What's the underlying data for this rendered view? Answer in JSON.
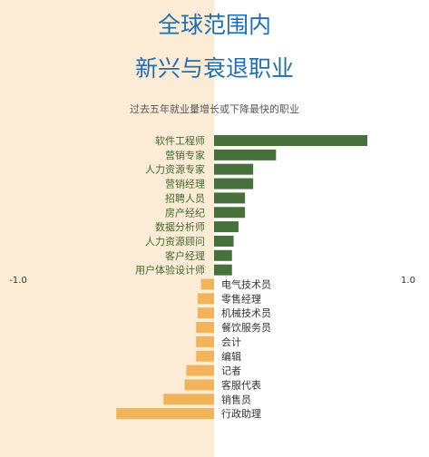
{
  "header": {
    "title_line1": "全球范围内",
    "title_line2": "新兴与衰退职业",
    "subtitle": "过去五年就业量增长或下降最快的职业"
  },
  "colors": {
    "positive": "#46713a",
    "negative": "#f2b45a",
    "left_background": "#fdecd5",
    "title": "#1f6fb0",
    "positive_label": "#3f6a33",
    "negative_label": "#333333"
  },
  "chart_data": {
    "type": "bar",
    "orientation": "horizontal",
    "xlim": [
      -1.0,
      1.0
    ],
    "x_tick_labels": [
      "-1.0",
      "1.0"
    ],
    "grid": false,
    "categories": [
      "软件工程师",
      "营销专家",
      "人力资源专家",
      "营销经理",
      "招聘人员",
      "房产经纪",
      "数据分析师",
      "人力资源顾问",
      "客户经理",
      "用户体验设计师",
      "电气技术员",
      "零售经理",
      "机械技术员",
      "餐饮服务员",
      "会计",
      "编辑",
      "记者",
      "客服代表",
      "销售员",
      "行政助理"
    ],
    "values": [
      0.94,
      0.38,
      0.24,
      0.24,
      0.19,
      0.19,
      0.15,
      0.12,
      0.11,
      0.11,
      -0.08,
      -0.1,
      -0.1,
      -0.11,
      -0.11,
      -0.11,
      -0.17,
      -0.18,
      -0.31,
      -0.6
    ]
  }
}
